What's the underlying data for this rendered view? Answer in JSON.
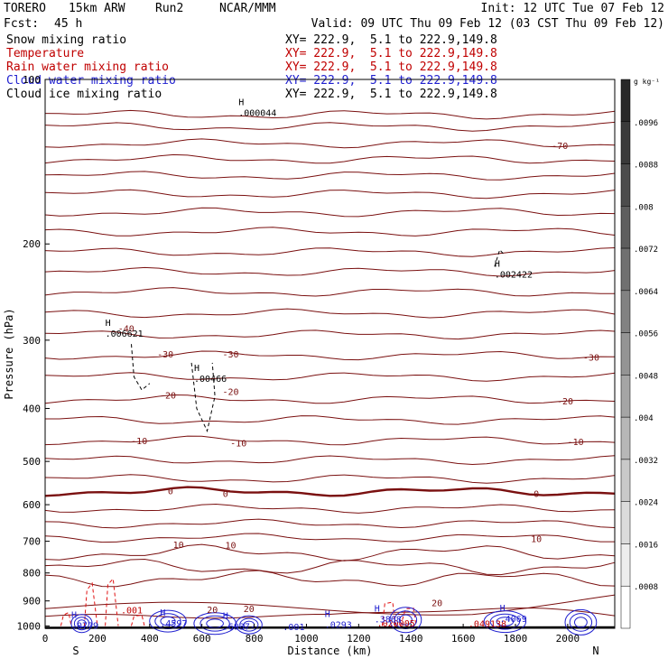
{
  "header": {
    "model": "TORERO",
    "resolution": "15km ARW",
    "run": "Run2",
    "org": "NCAR/MMM",
    "init_label": "Init: 12 UTC Tue 07 Feb 12",
    "fcst_label": "Fcst:",
    "fcst_value": "45 h",
    "valid_label": "Valid: 09 UTC Thu 09 Feb 12 (03 CST Thu 09 Feb 12)"
  },
  "fields": [
    {
      "name": "Snow mixing ratio",
      "xy": "XY= 222.9,  5.1 to 222.9,149.8",
      "color": "#000000"
    },
    {
      "name": "Temperature",
      "xy": "XY= 222.9,  5.1 to 222.9,149.8",
      "color": "#c00000"
    },
    {
      "name": "Rain water mixing ratio",
      "xy": "XY= 222.9,  5.1 to 222.9,149.8",
      "color": "#c00000"
    },
    {
      "name": "Cloud water mixing ratio",
      "xy": "XY= 222.9,  5.1 to 222.9,149.8",
      "color": "#1f1fcf"
    },
    {
      "name": "Cloud ice mixing ratio",
      "xy": "XY= 222.9,  5.1 to 222.9,149.8",
      "color": "#000000"
    }
  ],
  "chart_data": {
    "type": "contour",
    "xlabel": "Distance (km)",
    "ylabel": "Pressure (hPa)",
    "xlim": [
      0,
      2180
    ],
    "ylim": [
      100,
      1010
    ],
    "x_ticks": [
      0,
      200,
      400,
      600,
      800,
      1000,
      1200,
      1400,
      1600,
      1800,
      2000
    ],
    "y_ticks": [
      100,
      200,
      300,
      400,
      500,
      600,
      700,
      800,
      900,
      1000
    ],
    "end_labels": {
      "left": "S",
      "right": "N"
    },
    "temperature_contour_labels": [
      {
        "text": "-70",
        "x": 1970,
        "p": 132
      },
      {
        "text": "-40",
        "x": 310,
        "p": 285
      },
      {
        "text": "-30",
        "x": 460,
        "p": 318
      },
      {
        "text": "-30",
        "x": 710,
        "p": 318
      },
      {
        "text": "-30",
        "x": 2090,
        "p": 322
      },
      {
        "text": "-20",
        "x": 470,
        "p": 378
      },
      {
        "text": "-20",
        "x": 710,
        "p": 372
      },
      {
        "text": "-20",
        "x": 1990,
        "p": 387
      },
      {
        "text": "-10",
        "x": 360,
        "p": 458
      },
      {
        "text": "-10",
        "x": 740,
        "p": 462
      },
      {
        "text": "-10",
        "x": 2030,
        "p": 460
      },
      {
        "text": "0",
        "x": 480,
        "p": 566
      },
      {
        "text": "0",
        "x": 690,
        "p": 572
      },
      {
        "text": "0",
        "x": 1880,
        "p": 572
      },
      {
        "text": "10",
        "x": 1880,
        "p": 692
      },
      {
        "text": "10",
        "x": 510,
        "p": 709
      },
      {
        "text": "10",
        "x": 710,
        "p": 711
      },
      {
        "text": "20",
        "x": 640,
        "p": 932
      },
      {
        "text": "20",
        "x": 780,
        "p": 929
      },
      {
        "text": "20",
        "x": 1500,
        "p": 907
      }
    ],
    "field_extrema": [
      {
        "field": "cloud_ice",
        "label": "H",
        "value": ".000044",
        "x": 740,
        "p": 115
      },
      {
        "field": "cloud_ice",
        "label": "H",
        "value": ".002422",
        "x": 1720,
        "p": 227
      },
      {
        "field": "cloud_ice",
        "label": "H",
        "value": ".006621",
        "x": 230,
        "p": 291
      },
      {
        "field": "cloud_ice",
        "label": "H",
        "value": ".00466",
        "x": 570,
        "p": 352
      },
      {
        "field": "rain",
        "label": "",
        "value": ".001",
        "x": 290,
        "p": 935
      },
      {
        "field": "rain",
        "label": "",
        "value": ".049138",
        "x": 1620,
        "p": 990
      },
      {
        "field": "rain",
        "label": "",
        "value": ".020005",
        "x": 1270,
        "p": 987
      },
      {
        "field": "cloud_water",
        "label": "H",
        "value": ".0779",
        "x": 100,
        "p": 997
      },
      {
        "field": "cloud_water",
        "label": "H",
        "value": ".0293",
        "x": 1070,
        "p": 993
      },
      {
        "field": "cloud_water",
        "label": "H",
        "value": ".3868",
        "x": 1260,
        "p": 971
      },
      {
        "field": "cloud_water",
        "label": "H",
        "value": ".4069",
        "x": 1740,
        "p": 969
      },
      {
        "field": "cloud_water",
        "label": "H",
        "value": ".4597",
        "x": 440,
        "p": 987
      },
      {
        "field": "cloud_water",
        "label": "H",
        "value": ".6937",
        "x": 680,
        "p": 1001
      },
      {
        "field": "cloud_water",
        "label": "",
        "value": ".001",
        "x": 910,
        "p": 1003
      }
    ],
    "colorbar": {
      "unit": "g kg⁻¹",
      "labels": [
        ".0096",
        ".0088",
        ".008",
        ".0072",
        ".0064",
        ".0056",
        ".0048",
        ".004",
        ".0032",
        ".0024",
        ".0016",
        ".0008"
      ]
    }
  }
}
